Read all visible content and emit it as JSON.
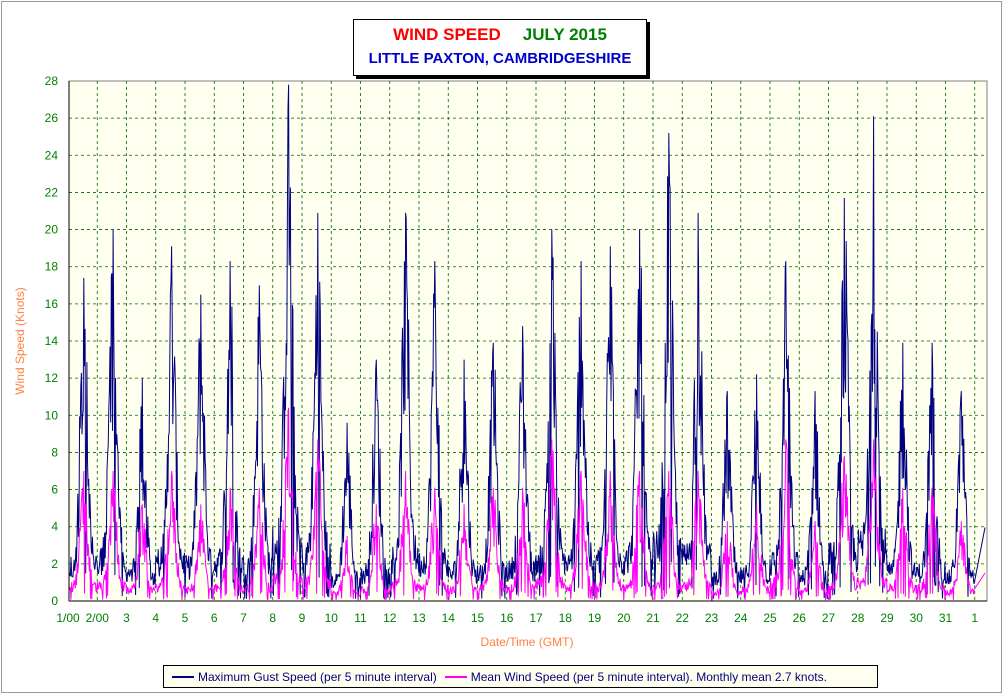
{
  "chart_data": {
    "type": "line",
    "title_main": "WIND SPEED",
    "title_date": "JULY 2015",
    "subtitle": "LITTLE PAXTON, CAMBRIDGESHIRE",
    "xlabel": "Date/Time (GMT)",
    "ylabel": "Wind Speed (Knots)",
    "ylim": [
      0,
      28
    ],
    "y_ticks": [
      0,
      2,
      4,
      6,
      8,
      10,
      12,
      14,
      16,
      18,
      20,
      22,
      24,
      26,
      28
    ],
    "x_tick_labels": [
      "1/00",
      "2/00",
      "3",
      "4",
      "5",
      "6",
      "7",
      "8",
      "9",
      "10",
      "11",
      "12",
      "13",
      "14",
      "15",
      "16",
      "17",
      "18",
      "19",
      "20",
      "21",
      "22",
      "23",
      "24",
      "25",
      "26",
      "27",
      "28",
      "29",
      "30",
      "31",
      "1"
    ],
    "grid": true,
    "legend_position": "bottom",
    "colors": {
      "gust": "#000080",
      "mean": "#ff00ff",
      "axis_text": "#008000",
      "axis_title": "#ff8040"
    },
    "series": [
      {
        "name": "Maximum Gust Speed (per 5 minute interval)",
        "daily_peak_values": [
          17.4,
          20.0,
          12.0,
          19.1,
          16.5,
          18.3,
          17.0,
          27.8,
          20.9,
          9.6,
          13.0,
          20.9,
          18.3,
          13.0,
          13.9,
          14.8,
          20.0,
          18.3,
          19.1,
          20.0,
          25.2,
          20.9,
          11.3,
          12.2,
          18.3,
          11.3,
          21.7,
          26.1,
          13.9,
          13.9,
          11.3
        ]
      },
      {
        "name": "Mean Wind Speed (per 5 minute interval). Monthly mean 2.7 knots.",
        "daily_peak_values": [
          7.0,
          7.0,
          5.2,
          7.0,
          5.2,
          6.1,
          6.1,
          10.4,
          8.7,
          3.5,
          5.2,
          7.0,
          6.1,
          5.2,
          6.1,
          6.1,
          8.7,
          7.0,
          7.0,
          7.0,
          7.0,
          7.0,
          4.3,
          5.2,
          8.7,
          4.3,
          7.8,
          8.7,
          6.1,
          6.1,
          4.3
        ]
      }
    ]
  }
}
